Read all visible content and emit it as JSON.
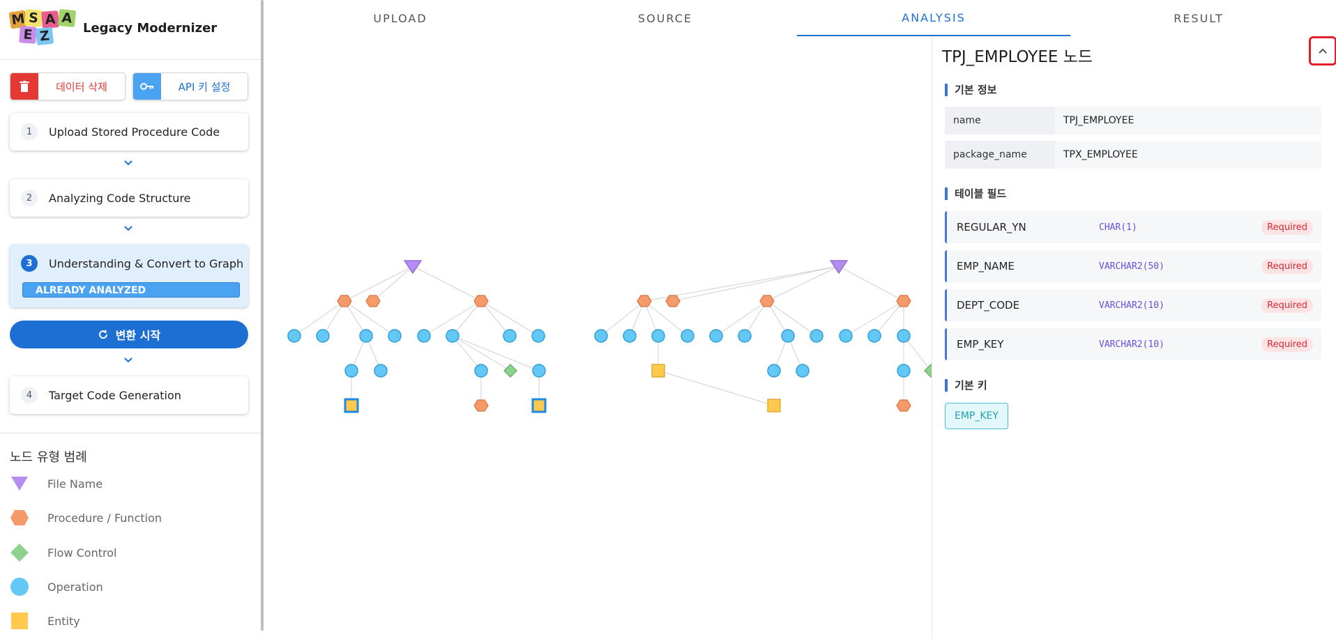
{
  "app": {
    "title": "Legacy Modernizer",
    "logo_letters": [
      "M",
      "S",
      "A",
      "E",
      "Z"
    ]
  },
  "actions": {
    "delete_label": "데이터 삭제",
    "api_key_label": "API 키 설정"
  },
  "steps": [
    {
      "num": "1",
      "title": "Upload Stored Procedure Code"
    },
    {
      "num": "2",
      "title": "Analyzing Code Structure"
    },
    {
      "num": "3",
      "title": "Understanding & Convert to Graph",
      "badge": "ALREADY ANALYZED"
    },
    {
      "num": "4",
      "title": "Target Code Generation"
    }
  ],
  "start_button": "변환 시작",
  "legend": {
    "title": "노드 유형 범례",
    "items": [
      {
        "label": "File Name",
        "shape": "triangle",
        "color": "#b48cf2"
      },
      {
        "label": "Procedure / Function",
        "shape": "hexagon",
        "color": "#f59a6b"
      },
      {
        "label": "Flow Control",
        "shape": "diamond",
        "color": "#8fd18f"
      },
      {
        "label": "Operation",
        "shape": "circle",
        "color": "#63c8f5"
      },
      {
        "label": "Entity",
        "shape": "square",
        "color": "#ffc94d"
      }
    ]
  },
  "tabs": [
    "UPLOAD",
    "SOURCE",
    "ANALYSIS",
    "RESULT"
  ],
  "active_tab": "ANALYSIS",
  "panel": {
    "title": "TPJ_EMPLOYEE 노드",
    "basic_info_title": "기본 정보",
    "basic_info": [
      {
        "key": "name",
        "value": "TPJ_EMPLOYEE"
      },
      {
        "key": "package_name",
        "value": "TPX_EMPLOYEE"
      }
    ],
    "fields_title": "테이블 필드",
    "fields": [
      {
        "name": "REGULAR_YN",
        "type": "CHAR(1)",
        "badge": "Required"
      },
      {
        "name": "EMP_NAME",
        "type": "VARCHAR2(50)",
        "badge": "Required"
      },
      {
        "name": "DEPT_CODE",
        "type": "VARCHAR2(10)",
        "badge": "Required"
      },
      {
        "name": "EMP_KEY",
        "type": "VARCHAR2(10)",
        "badge": "Required"
      }
    ],
    "pk_title": "기본 키",
    "primary_key": "EMP_KEY"
  },
  "colors": {
    "accent": "#1e6fd4",
    "danger": "#e53935",
    "file": "#b48cf2",
    "proc": "#f59a6b",
    "flow": "#8fd18f",
    "op": "#63c8f5",
    "entity": "#ffc94d"
  }
}
